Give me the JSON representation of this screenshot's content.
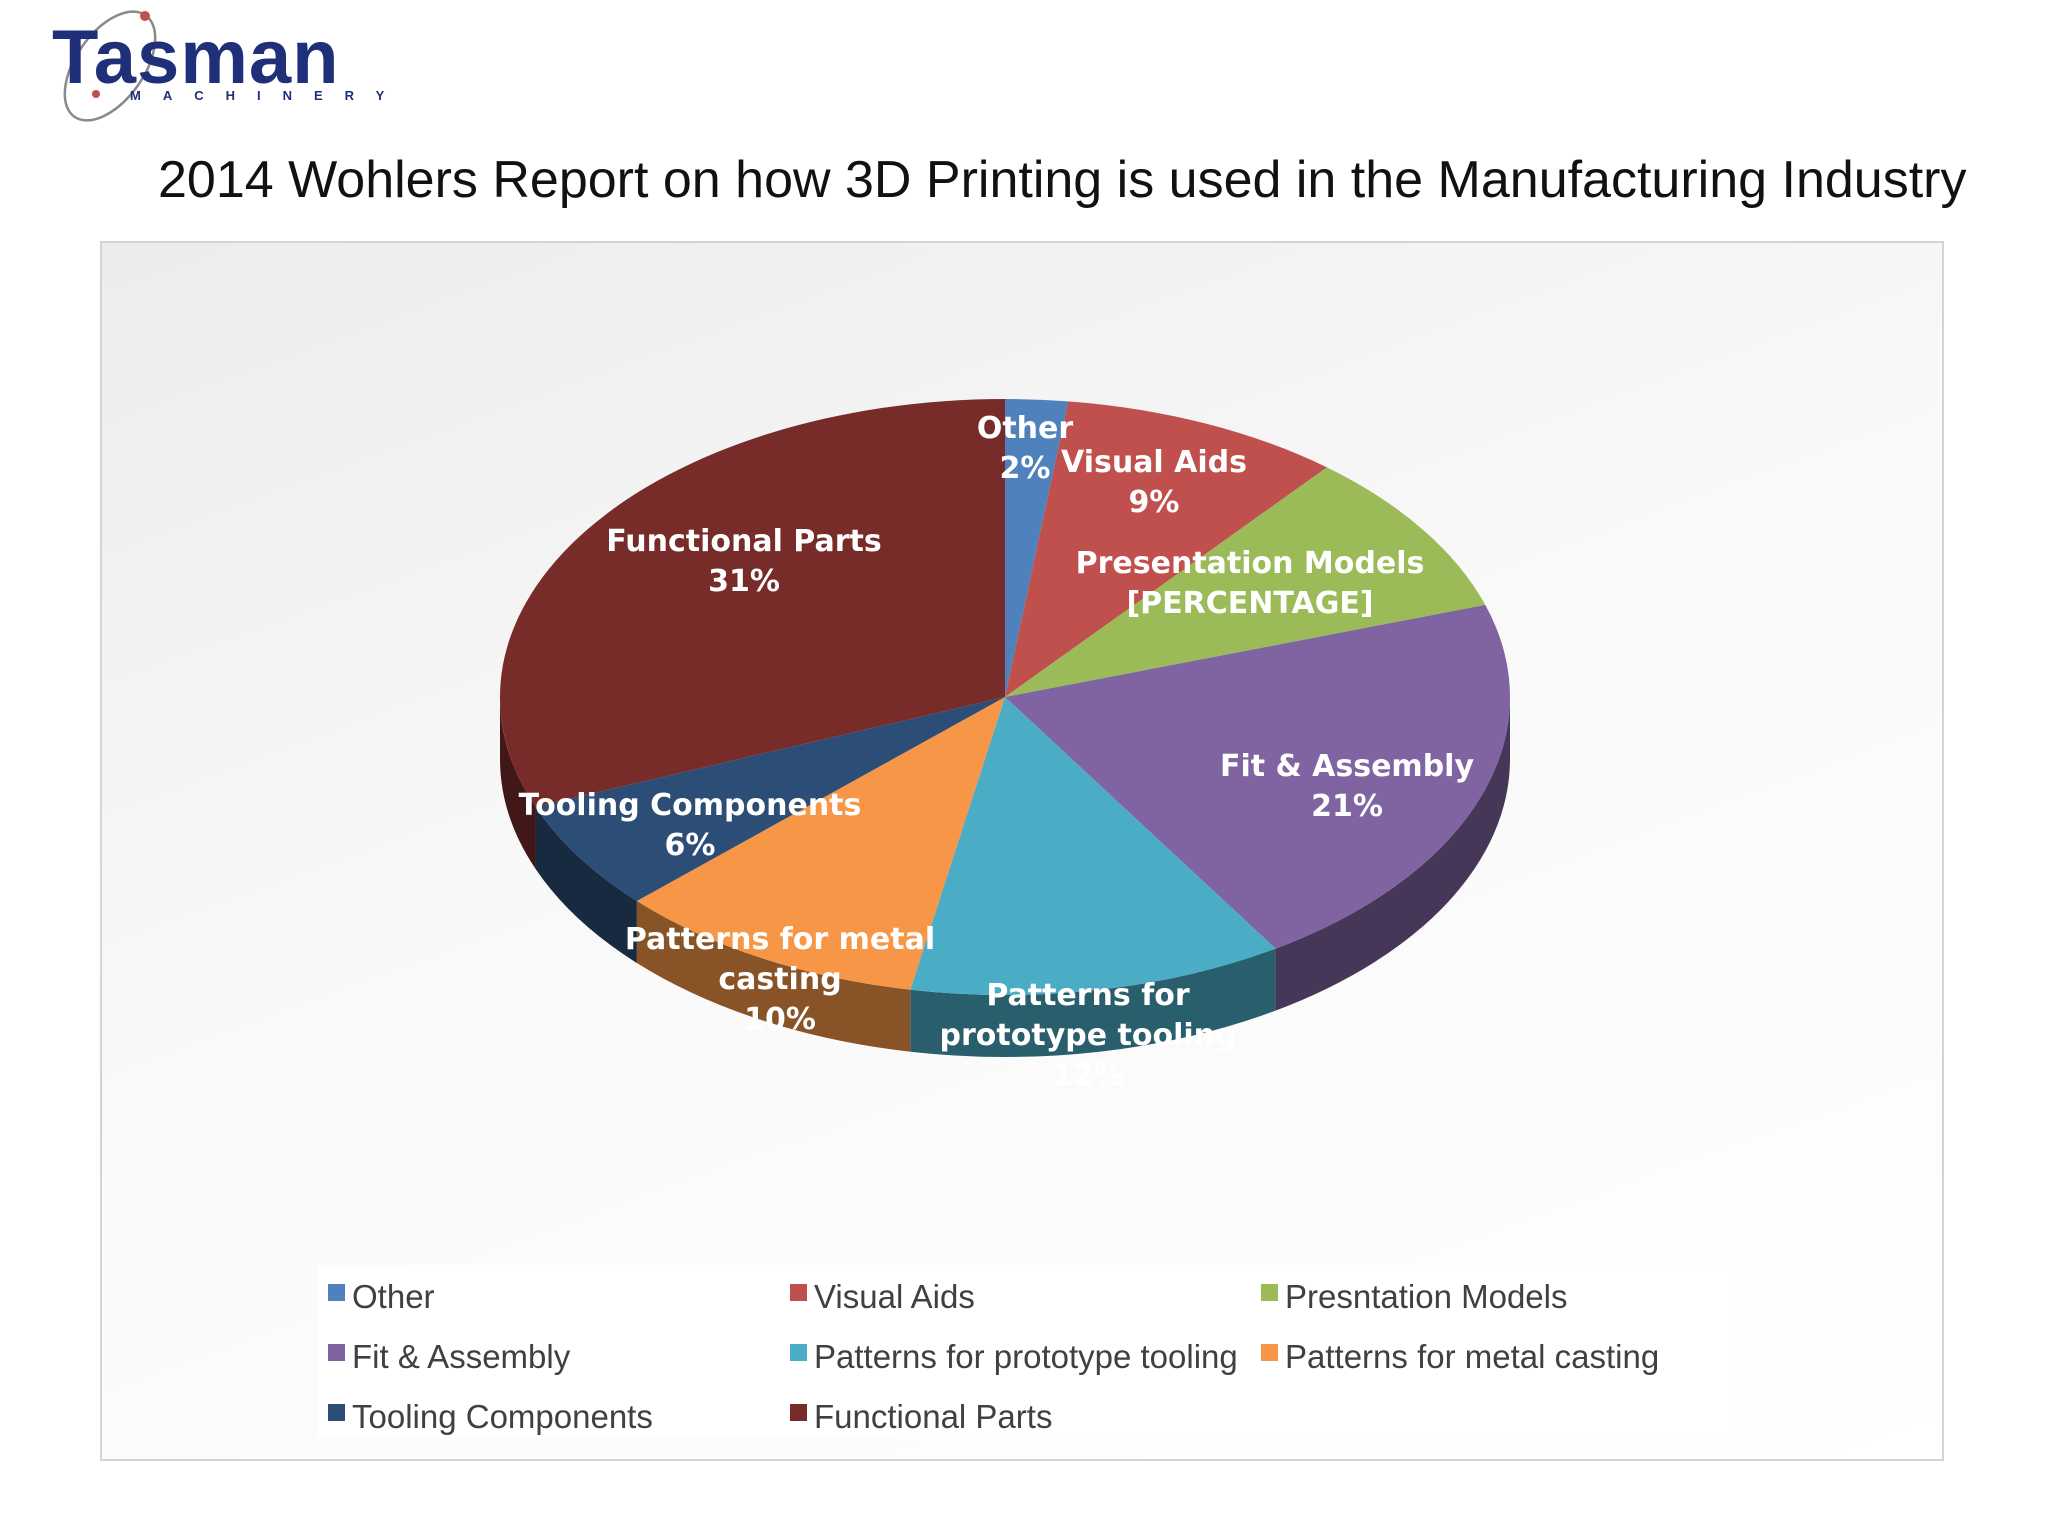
{
  "logo": {
    "name": "Tasman",
    "tagline": "MACHINERY"
  },
  "page_title": "2014 Wohlers Report on how 3D Printing is used in the Manufacturing Industry",
  "chart_data": {
    "type": "pie",
    "style": "3d",
    "title": "",
    "start": "12 o'clock, clockwise",
    "slices": [
      {
        "label": "Other",
        "value": 2,
        "value_label": "2%",
        "color": "#4f81bd"
      },
      {
        "label": "Visual Aids",
        "value": 9,
        "value_label": "9%",
        "color": "#c0504d"
      },
      {
        "label": "Presentation Models",
        "value": 9,
        "value_label": "[PERCENTAGE]",
        "color": "#9bbb59"
      },
      {
        "label": "Fit & Assembly",
        "value": 21,
        "value_label": "21%",
        "color": "#8064a2"
      },
      {
        "label": "Patterns for prototype tooling",
        "value": 12,
        "value_label": "12%",
        "color": "#4bacc6"
      },
      {
        "label": "Patterns for metal casting",
        "value": 10,
        "value_label": "10%",
        "color": "#f79646"
      },
      {
        "label": "Tooling Components",
        "value": 6,
        "value_label": "6%",
        "color": "#2c4d75"
      },
      {
        "label": "Functional Parts",
        "value": 31,
        "value_label": "31%",
        "color": "#772c2a"
      }
    ],
    "legend": {
      "position": "bottom",
      "entries": [
        "Other",
        "Visual Aids",
        "Presntation Models",
        "Fit & Assembly",
        "Patterns for prototype tooling",
        "Patterns for metal casting",
        "Tooling Components",
        "Functional Parts"
      ]
    }
  }
}
